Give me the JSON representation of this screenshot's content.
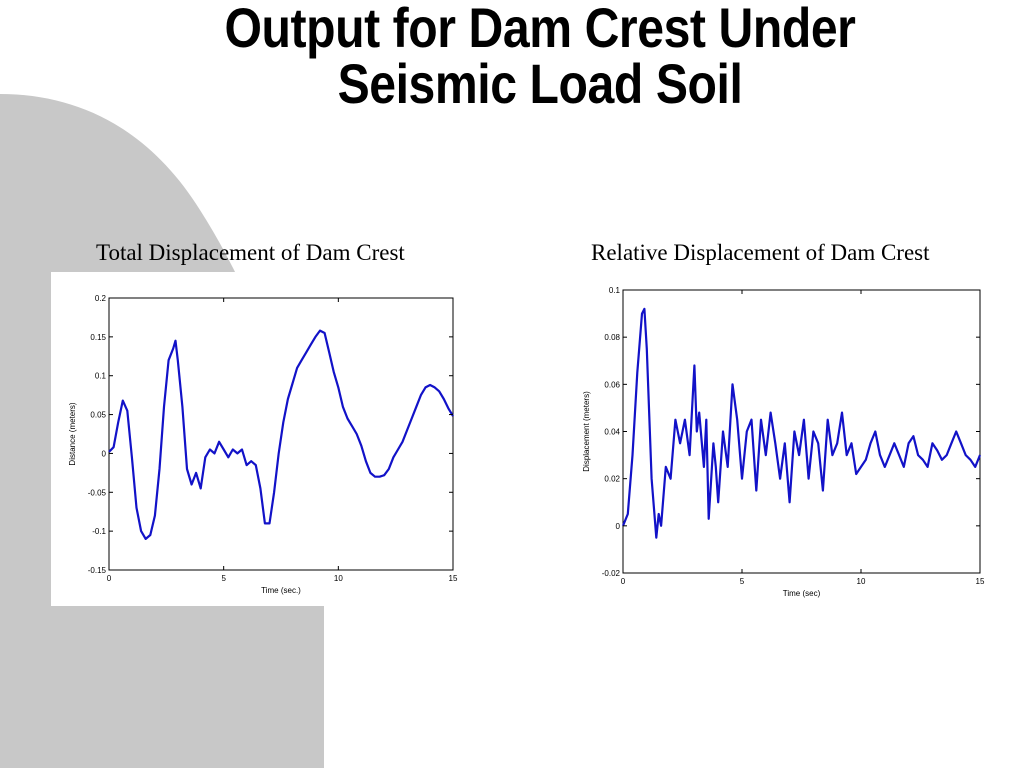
{
  "slide": {
    "title_line1": "Output for Dam Crest  Under",
    "title_line2": "Seismic Load Soil",
    "background_shape_color": "#c8c8c8"
  },
  "chart_data": [
    {
      "type": "line",
      "caption": "Total Displacement of Dam Crest",
      "xlabel": "Time (sec.)",
      "ylabel": "Distance (meters)",
      "xlim": [
        0,
        15
      ],
      "ylim": [
        -0.15,
        0.2
      ],
      "x_ticks": [
        0,
        5,
        10,
        15
      ],
      "x_tick_labels": [
        "0",
        "5",
        "10",
        "15"
      ],
      "y_ticks": [
        -0.15,
        -0.1,
        -0.05,
        0,
        0.05,
        0.1,
        0.15,
        0.2
      ],
      "y_tick_labels": [
        "-0.15",
        "-0.1",
        "-0.05",
        "0",
        "0.05",
        "0.1",
        "0.15",
        "0.2"
      ],
      "grid": false,
      "line_color": "#1212c8",
      "series": [
        {
          "x": [
            0,
            0.2,
            0.4,
            0.6,
            0.8,
            1.0,
            1.2,
            1.4,
            1.6,
            1.8,
            2.0,
            2.2,
            2.4,
            2.6,
            2.8,
            2.9,
            3.0,
            3.2,
            3.4,
            3.6,
            3.8,
            4.0,
            4.2,
            4.4,
            4.6,
            4.8,
            5.0,
            5.2,
            5.4,
            5.6,
            5.8,
            6.0,
            6.2,
            6.4,
            6.6,
            6.8,
            7.0,
            7.2,
            7.4,
            7.6,
            7.8,
            8.0,
            8.2,
            8.4,
            8.6,
            8.8,
            9.0,
            9.2,
            9.4,
            9.6,
            9.8,
            10.0,
            10.2,
            10.4,
            10.6,
            10.8,
            11.0,
            11.2,
            11.4,
            11.6,
            11.8,
            12.0,
            12.2,
            12.4,
            12.6,
            12.8,
            13.0,
            13.2,
            13.4,
            13.6,
            13.8,
            14.0,
            14.2,
            14.4,
            14.6,
            14.8,
            15.0
          ],
          "y": [
            0.002,
            0.008,
            0.04,
            0.068,
            0.055,
            -0.005,
            -0.07,
            -0.1,
            -0.11,
            -0.105,
            -0.08,
            -0.02,
            0.06,
            0.12,
            0.135,
            0.145,
            0.12,
            0.06,
            -0.02,
            -0.04,
            -0.025,
            -0.045,
            -0.005,
            0.005,
            0.0,
            0.015,
            0.005,
            -0.005,
            0.005,
            0.0,
            0.005,
            -0.015,
            -0.01,
            -0.015,
            -0.045,
            -0.09,
            -0.09,
            -0.05,
            0.0,
            0.04,
            0.07,
            0.09,
            0.11,
            0.12,
            0.13,
            0.14,
            0.15,
            0.158,
            0.155,
            0.13,
            0.105,
            0.085,
            0.06,
            0.045,
            0.035,
            0.025,
            0.01,
            -0.01,
            -0.025,
            -0.03,
            -0.03,
            -0.028,
            -0.02,
            -0.005,
            0.005,
            0.015,
            0.03,
            0.045,
            0.06,
            0.075,
            0.085,
            0.088,
            0.085,
            0.08,
            0.07,
            0.058,
            0.048
          ]
        }
      ]
    },
    {
      "type": "line",
      "caption": "Relative Displacement of Dam Crest",
      "xlabel": "Time (sec)",
      "ylabel": "Displacement (meters)",
      "xlim": [
        0,
        15
      ],
      "ylim": [
        -0.02,
        0.1
      ],
      "x_ticks": [
        0,
        5,
        10,
        15
      ],
      "x_tick_labels": [
        "0",
        "5",
        "10",
        "15"
      ],
      "y_ticks": [
        -0.02,
        0,
        0.02,
        0.04,
        0.06,
        0.08,
        0.1
      ],
      "y_tick_labels": [
        "-0.02",
        "0",
        "0.02",
        "0.04",
        "0.06",
        "0.08",
        "0.1"
      ],
      "grid": false,
      "line_color": "#1212c8",
      "series": [
        {
          "x": [
            0,
            0.2,
            0.4,
            0.6,
            0.8,
            0.9,
            1.0,
            1.2,
            1.4,
            1.5,
            1.6,
            1.8,
            2.0,
            2.2,
            2.4,
            2.6,
            2.8,
            3.0,
            3.1,
            3.2,
            3.4,
            3.5,
            3.6,
            3.8,
            3.9,
            4.0,
            4.2,
            4.4,
            4.6,
            4.8,
            5.0,
            5.2,
            5.4,
            5.6,
            5.8,
            6.0,
            6.2,
            6.4,
            6.6,
            6.8,
            7.0,
            7.2,
            7.4,
            7.6,
            7.8,
            8.0,
            8.2,
            8.4,
            8.6,
            8.8,
            9.0,
            9.2,
            9.4,
            9.6,
            9.8,
            10.0,
            10.2,
            10.4,
            10.6,
            10.8,
            11.0,
            11.2,
            11.4,
            11.6,
            11.8,
            12.0,
            12.2,
            12.4,
            12.6,
            12.8,
            13.0,
            13.2,
            13.4,
            13.6,
            13.8,
            14.0,
            14.2,
            14.4,
            14.6,
            14.8,
            15.0
          ],
          "y": [
            0.0,
            0.005,
            0.03,
            0.065,
            0.09,
            0.092,
            0.075,
            0.02,
            -0.005,
            0.005,
            0.0,
            0.025,
            0.02,
            0.045,
            0.035,
            0.045,
            0.03,
            0.068,
            0.04,
            0.048,
            0.025,
            0.045,
            0.003,
            0.035,
            0.025,
            0.01,
            0.04,
            0.025,
            0.06,
            0.045,
            0.02,
            0.04,
            0.045,
            0.015,
            0.045,
            0.03,
            0.048,
            0.035,
            0.02,
            0.035,
            0.01,
            0.04,
            0.03,
            0.045,
            0.02,
            0.04,
            0.035,
            0.015,
            0.045,
            0.03,
            0.035,
            0.048,
            0.03,
            0.035,
            0.022,
            0.025,
            0.028,
            0.035,
            0.04,
            0.03,
            0.025,
            0.03,
            0.035,
            0.03,
            0.025,
            0.035,
            0.038,
            0.03,
            0.028,
            0.025,
            0.035,
            0.032,
            0.028,
            0.03,
            0.035,
            0.04,
            0.035,
            0.03,
            0.028,
            0.025,
            0.03
          ]
        }
      ]
    }
  ]
}
